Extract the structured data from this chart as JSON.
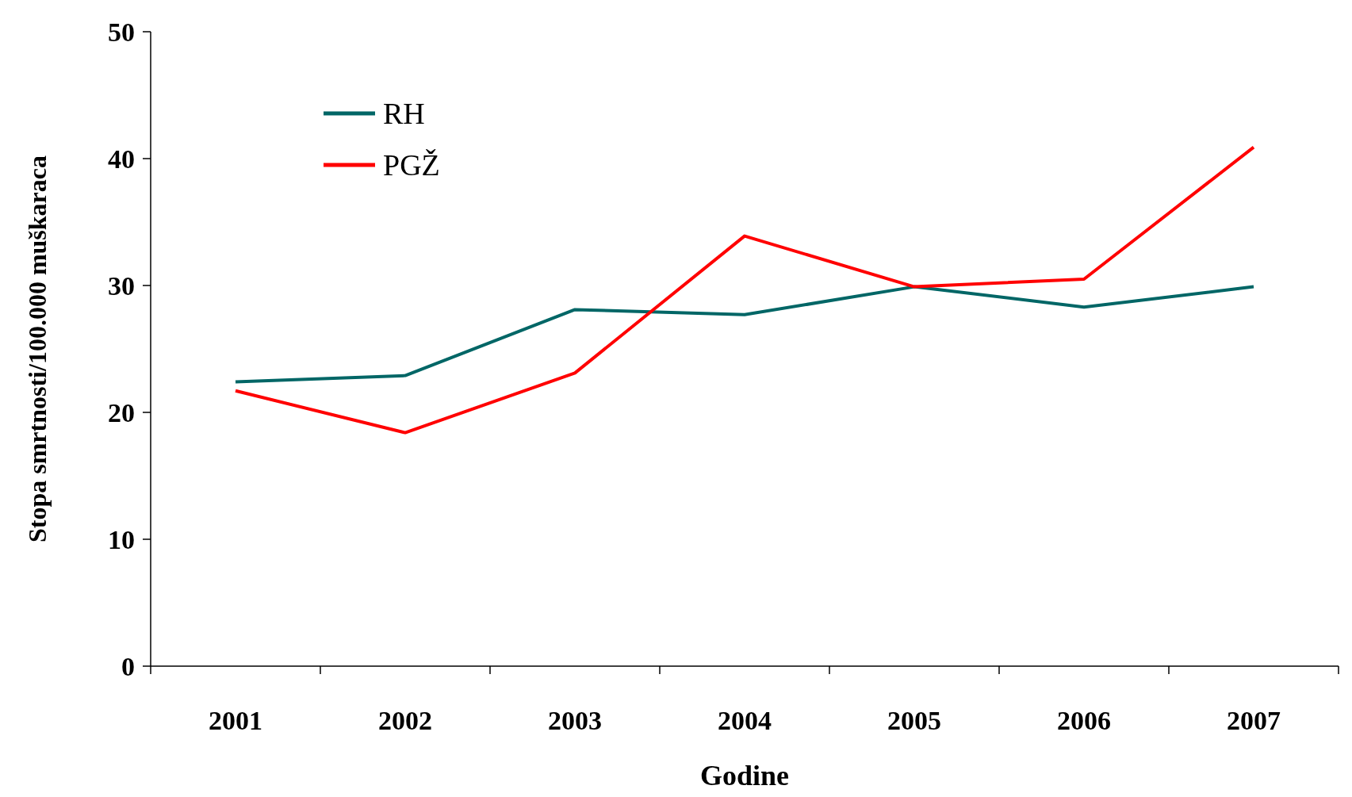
{
  "chart_data": {
    "type": "line",
    "xlabel": "Godine",
    "ylabel": "Stopa smrtnosti/100.000 muškaraca",
    "categories": [
      "2001",
      "2002",
      "2003",
      "2004",
      "2005",
      "2006",
      "2007"
    ],
    "series": [
      {
        "name": "RH",
        "color": "#006666",
        "values": [
          22.4,
          22.9,
          28.1,
          27.7,
          29.9,
          28.3,
          29.9
        ]
      },
      {
        "name": "PGŽ",
        "color": "#ff0000",
        "values": [
          21.7,
          18.4,
          23.1,
          33.9,
          29.9,
          30.5,
          40.9
        ]
      }
    ],
    "ylim": [
      0,
      50
    ],
    "yticks": [
      0,
      10,
      20,
      30,
      40,
      50
    ],
    "legend": "top left",
    "marker": "none",
    "line_style": "solid"
  }
}
